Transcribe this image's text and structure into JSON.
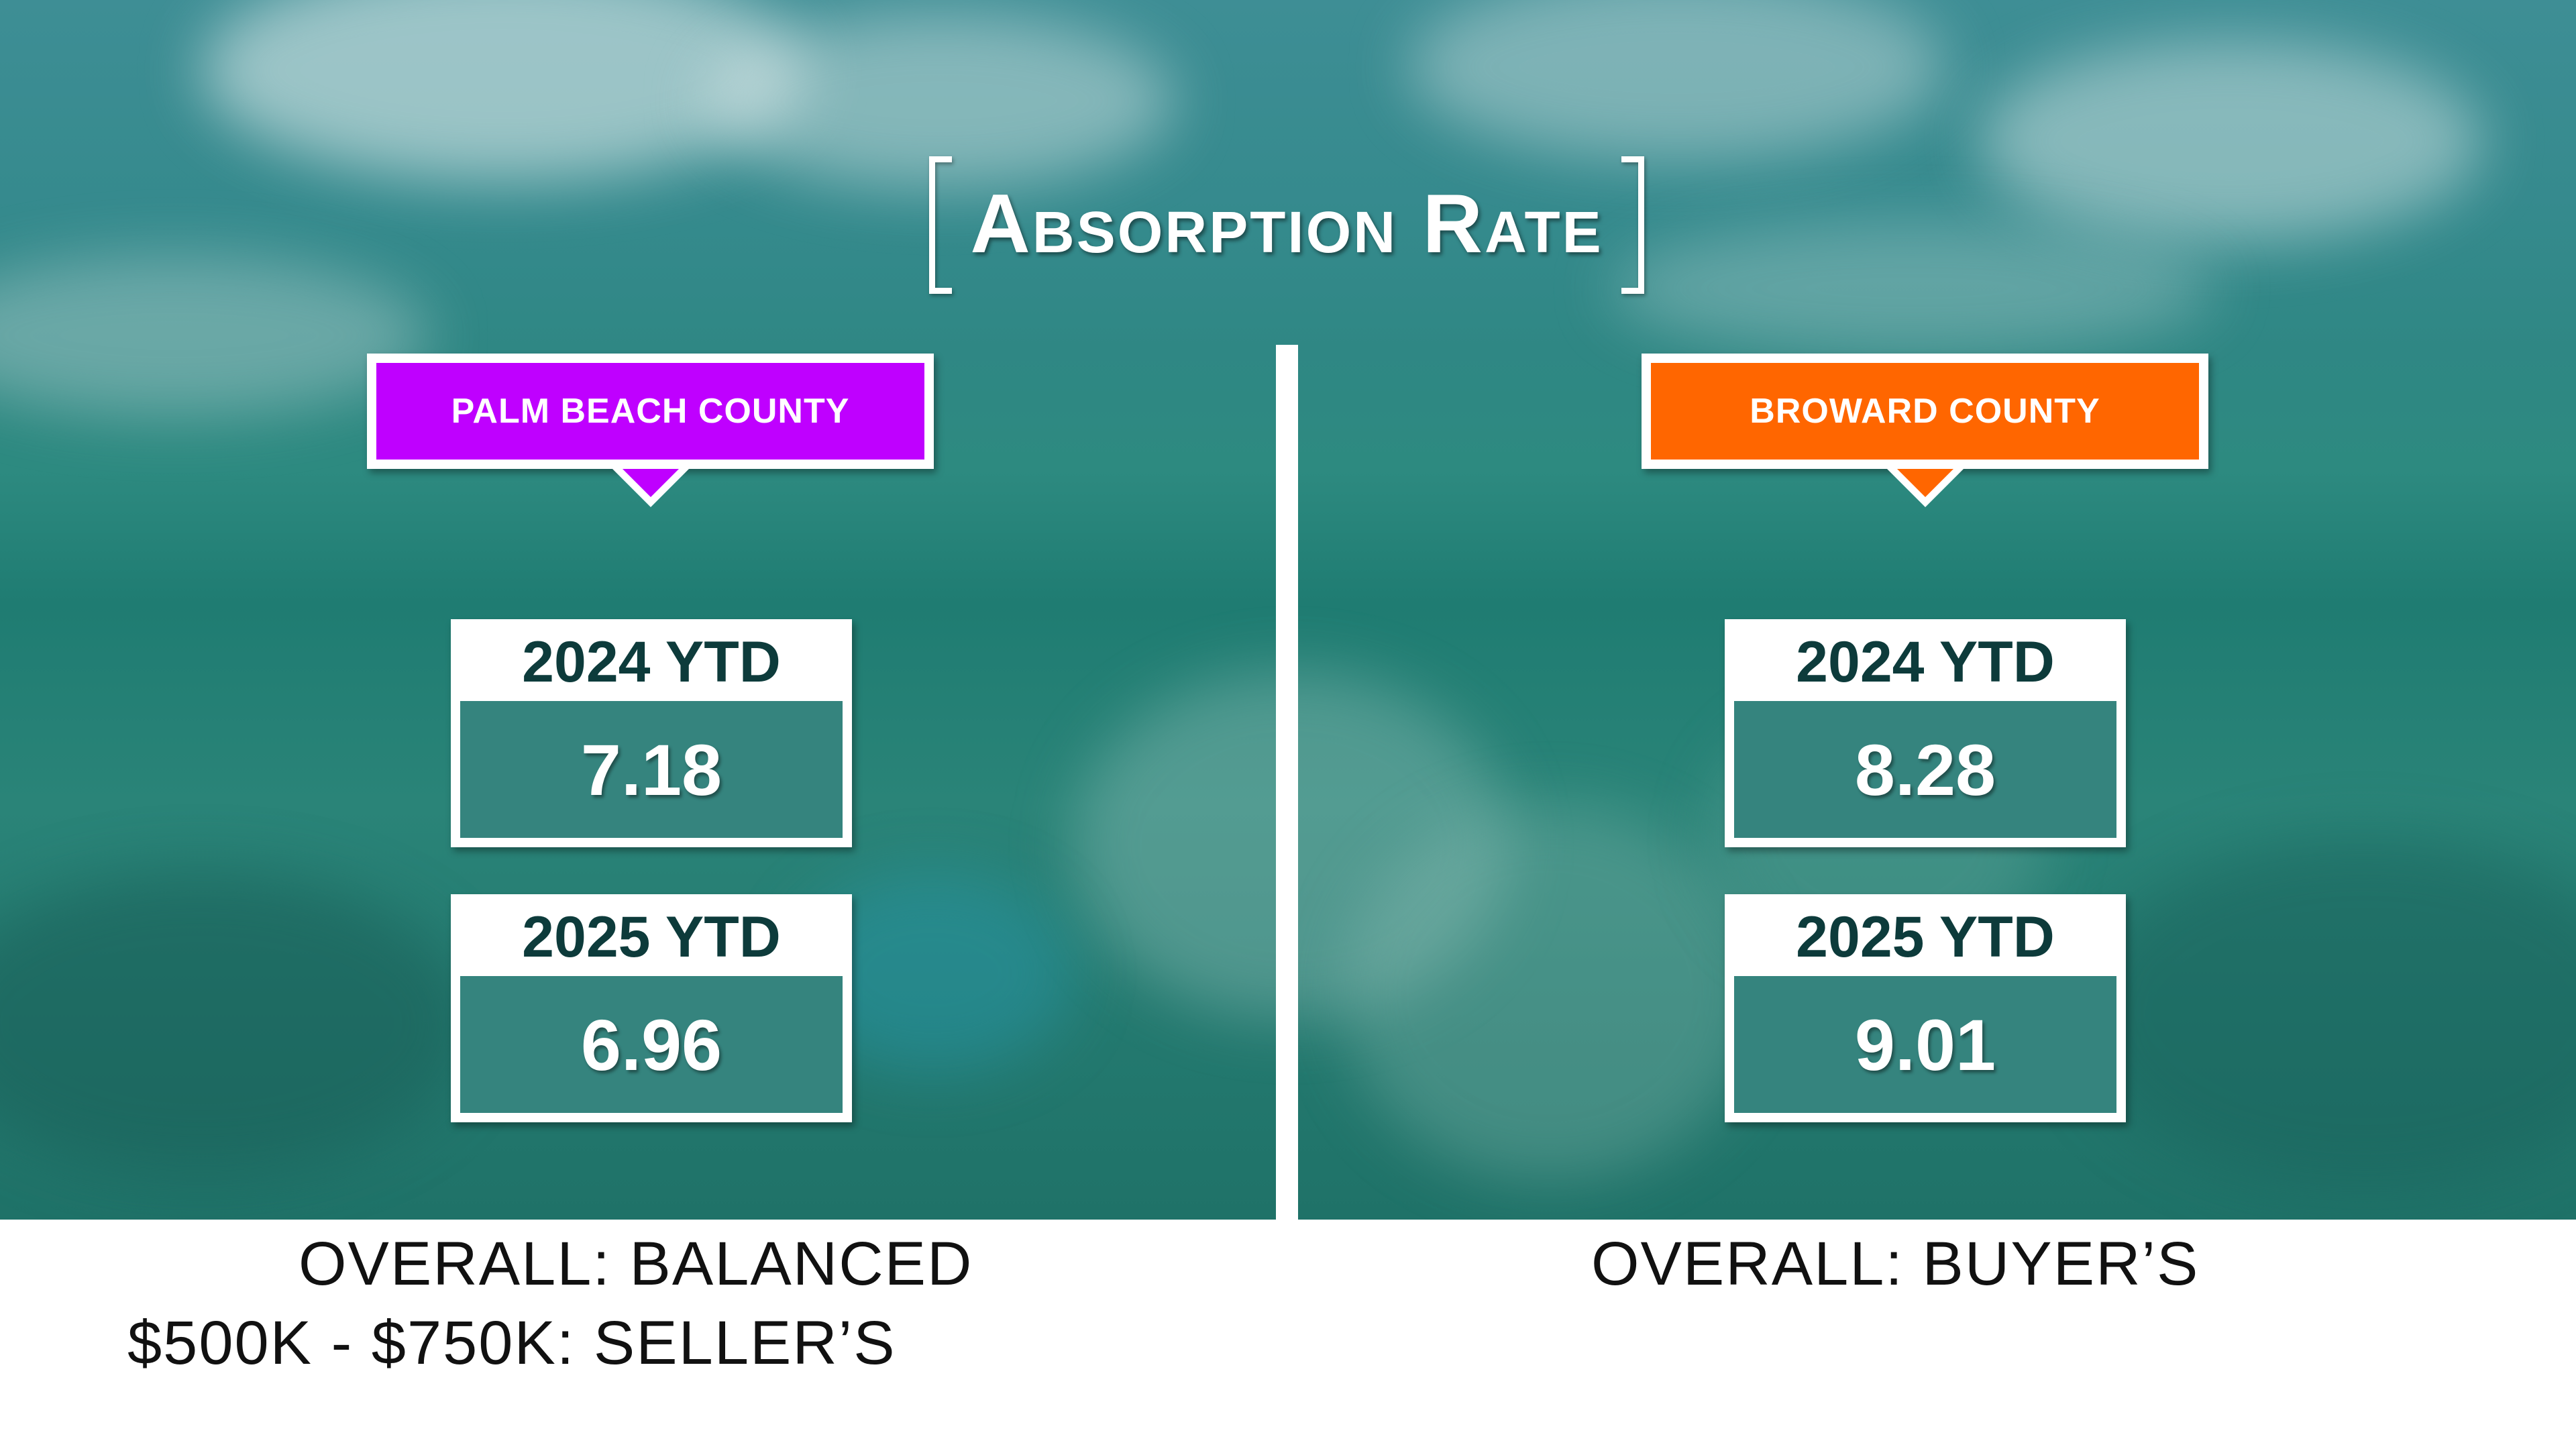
{
  "title": "Absorption Rate",
  "colors": {
    "palm_beach_accent": "#bf00ff",
    "broward_accent": "#ff6600",
    "stat_text": "#0d3b3b",
    "background_teal": "#2a8478"
  },
  "palm_beach": {
    "county_label": "PALM BEACH COUNTY",
    "stats": [
      {
        "label": "2024 YTD",
        "value": "7.18"
      },
      {
        "label": "2025 YTD",
        "value": "6.96"
      }
    ],
    "overall": "OVERALL: BALANCED",
    "segment": "$500K - $750K: SELLER’S"
  },
  "broward": {
    "county_label": "BROWARD COUNTY",
    "stats": [
      {
        "label": "2024 YTD",
        "value": "8.28"
      },
      {
        "label": "2025 YTD",
        "value": "9.01"
      }
    ],
    "overall": "OVERALL: BUYER’S"
  }
}
